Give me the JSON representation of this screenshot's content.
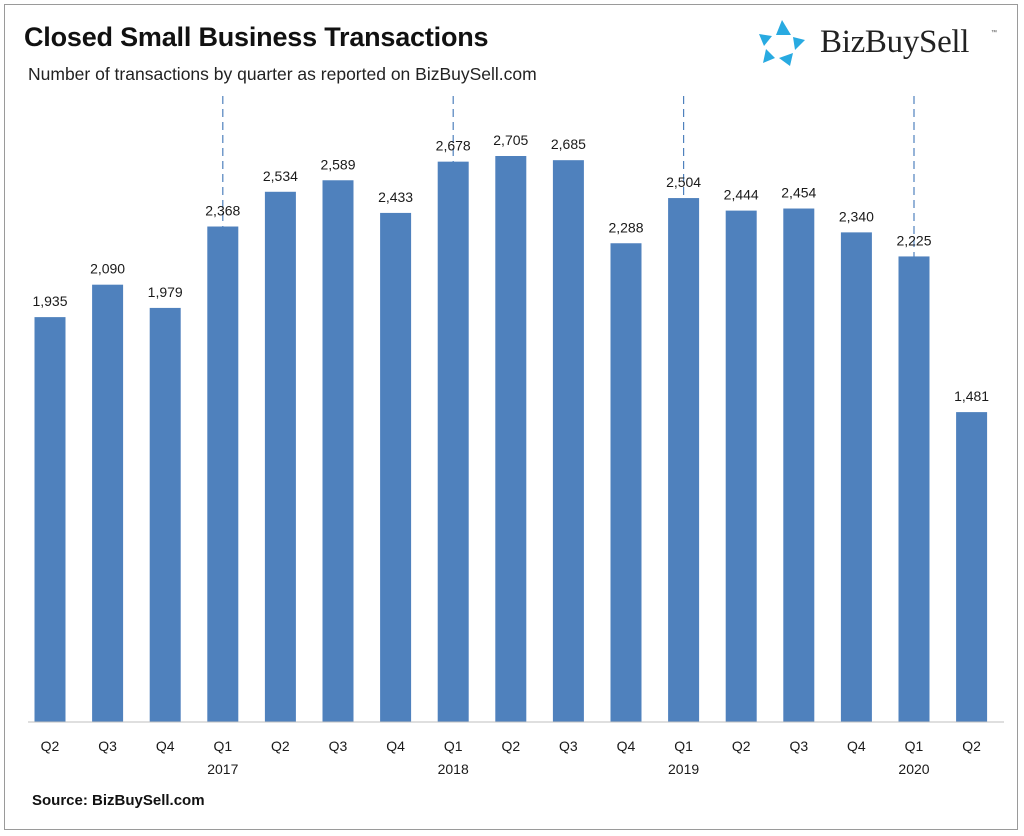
{
  "header": {
    "title": "Closed Small Business Transactions",
    "subtitle": "Number of transactions by quarter as reported on BizBuySell.com"
  },
  "brand": {
    "name": "BizBuySell",
    "tm": "™",
    "logo_icon": "bizbuysell-star-icon",
    "logo_color": "#28aae1"
  },
  "footer": {
    "source": "Source: BizBuySell.com"
  },
  "colors": {
    "bar": "#4f81bd",
    "divider": "#4f81bd"
  },
  "chart_data": {
    "type": "bar",
    "title": "Closed Small Business Transactions",
    "subtitle": "Number of transactions by quarter as reported on BizBuySell.com",
    "xlabel": "",
    "ylabel": "",
    "categories": [
      "Q2",
      "Q3",
      "Q4",
      "Q1",
      "Q2",
      "Q3",
      "Q4",
      "Q1",
      "Q2",
      "Q3",
      "Q4",
      "Q1",
      "Q2",
      "Q3",
      "Q4",
      "Q1",
      "Q2"
    ],
    "values": [
      1935,
      2090,
      1979,
      2368,
      2534,
      2589,
      2433,
      2678,
      2705,
      2685,
      2288,
      2504,
      2444,
      2454,
      2340,
      2225,
      1481
    ],
    "value_labels": [
      "1,935",
      "2,090",
      "1,979",
      "2,368",
      "2,534",
      "2,589",
      "2,433",
      "2,678",
      "2,705",
      "2,685",
      "2,288",
      "2,504",
      "2,444",
      "2,454",
      "2,340",
      "2,225",
      "1,481"
    ],
    "year_labels": [
      {
        "category_index": 3,
        "label": "2017"
      },
      {
        "category_index": 7,
        "label": "2018"
      },
      {
        "category_index": 11,
        "label": "2019"
      },
      {
        "category_index": 15,
        "label": "2020"
      }
    ],
    "ylim": [
      0,
      3000
    ],
    "grid": false,
    "legend": "none"
  }
}
